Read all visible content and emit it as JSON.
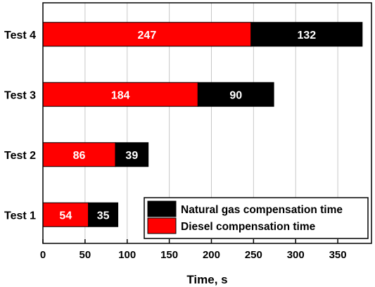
{
  "chart_data": {
    "type": "bar",
    "orientation": "horizontal",
    "stacked": true,
    "categories": [
      "Test 1",
      "Test 2",
      "Test 3",
      "Test 4"
    ],
    "series": [
      {
        "name": "Diesel compensation time",
        "values": [
          54,
          86,
          184,
          247
        ],
        "color": "#ff0000"
      },
      {
        "name": "Natural gas compensation time",
        "values": [
          35,
          39,
          90,
          132
        ],
        "color": "#000000"
      }
    ],
    "xlabel": "Time, s",
    "ylabel": "",
    "xlim": [
      0,
      390
    ],
    "xticks": [
      0,
      50,
      100,
      150,
      200,
      250,
      300,
      350
    ],
    "grid": "vertical",
    "legend_position": "bottom-right",
    "legend_order": [
      "Natural gas compensation time",
      "Diesel compensation time"
    ]
  }
}
